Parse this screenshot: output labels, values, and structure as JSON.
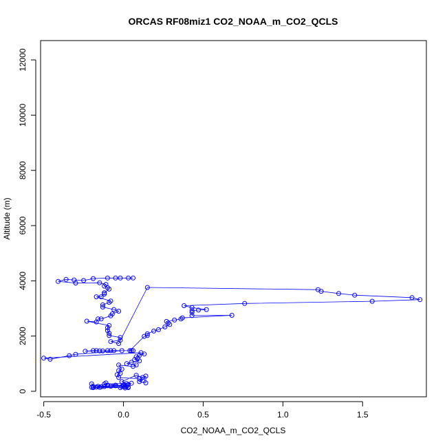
{
  "chart_data": {
    "type": "scatter",
    "title": "ORCAS RF08miz1 CO2_NOAA_m_CO2_QCLS",
    "xlabel": "CO2_NOAA_m_CO2_QCLS",
    "ylabel": "Altitude (m)",
    "xlim": [
      -0.52,
      1.9
    ],
    "ylim": [
      -200,
      12700
    ],
    "x_ticks": [
      -0.5,
      0.0,
      0.5,
      1.0,
      1.5
    ],
    "x_tick_labels": [
      "-0.5",
      "0.0",
      "0.5",
      "1.0",
      "1.5"
    ],
    "y_ticks": [
      0,
      2000,
      4000,
      6000,
      8000,
      10000,
      12000
    ],
    "y_tick_labels": [
      "0",
      "2000",
      "4000",
      "6000",
      "8000",
      "10000",
      "12000"
    ],
    "grid": false,
    "legend": "none",
    "color": "#0000ff",
    "points": [
      [
        -0.02,
        4100
      ],
      [
        0.03,
        4100
      ],
      [
        0.06,
        4100
      ],
      [
        -0.05,
        4100
      ],
      [
        -0.1,
        4100
      ],
      [
        -0.19,
        4080
      ],
      [
        -0.25,
        4010
      ],
      [
        -0.31,
        4030
      ],
      [
        -0.36,
        4050
      ],
      [
        -0.41,
        3980
      ],
      [
        -0.3,
        3920
      ],
      [
        -0.15,
        3930
      ],
      [
        -0.11,
        3870
      ],
      [
        -0.12,
        3810
      ],
      [
        -0.1,
        3750
      ],
      [
        -0.09,
        3700
      ],
      [
        -0.12,
        3570
      ],
      [
        -0.12,
        3520
      ],
      [
        -0.14,
        3420
      ],
      [
        -0.17,
        3420
      ],
      [
        -0.08,
        3270
      ],
      [
        -0.09,
        3220
      ],
      [
        -0.13,
        3130
      ],
      [
        -0.13,
        3050
      ],
      [
        -0.06,
        2960
      ],
      [
        -0.03,
        2900
      ],
      [
        -0.07,
        2800
      ],
      [
        -0.08,
        2730
      ],
      [
        -0.14,
        2620
      ],
      [
        -0.16,
        2620
      ],
      [
        -0.17,
        2510
      ],
      [
        -0.23,
        2540
      ],
      [
        -0.09,
        2380
      ],
      [
        -0.1,
        2300
      ],
      [
        -0.1,
        2200
      ],
      [
        -0.09,
        2100
      ],
      [
        -0.09,
        2020
      ],
      [
        -0.02,
        1950
      ],
      [
        -0.02,
        1850
      ],
      [
        -0.08,
        1800
      ],
      [
        -0.03,
        1730
      ],
      [
        0.15,
        3760
      ],
      [
        1.22,
        3680
      ],
      [
        1.24,
        3620
      ],
      [
        1.35,
        3540
      ],
      [
        1.45,
        3480
      ],
      [
        1.81,
        3390
      ],
      [
        1.86,
        3320
      ],
      [
        1.56,
        3260
      ],
      [
        0.76,
        3180
      ],
      [
        0.38,
        3100
      ],
      [
        0.43,
        3030
      ],
      [
        0.52,
        2960
      ],
      [
        0.47,
        2940
      ],
      [
        0.43,
        2920
      ],
      [
        0.43,
        2860
      ],
      [
        0.43,
        2740
      ],
      [
        0.68,
        2750
      ],
      [
        0.37,
        2660
      ],
      [
        0.36,
        2620
      ],
      [
        0.32,
        2580
      ],
      [
        0.27,
        2530
      ],
      [
        0.28,
        2470
      ],
      [
        0.29,
        2420
      ],
      [
        0.26,
        2330
      ],
      [
        0.22,
        2230
      ],
      [
        0.19,
        2180
      ],
      [
        0.15,
        2080
      ],
      [
        0.15,
        2020
      ],
      [
        0.13,
        1990
      ],
      [
        0.04,
        1470
      ],
      [
        0.05,
        1470
      ],
      [
        0.06,
        1470
      ],
      [
        -0.06,
        1470
      ],
      [
        -0.08,
        1470
      ],
      [
        -0.1,
        1470
      ],
      [
        -0.15,
        1460
      ],
      [
        -0.17,
        1470
      ],
      [
        -0.19,
        1470
      ],
      [
        -0.24,
        1450
      ],
      [
        -0.13,
        1460
      ],
      [
        -0.01,
        1470
      ],
      [
        -0.3,
        1340
      ],
      [
        -0.34,
        1290
      ],
      [
        -0.46,
        1160
      ],
      [
        -0.5,
        1200
      ],
      [
        0.11,
        1400
      ],
      [
        0.13,
        1350
      ],
      [
        0.1,
        1300
      ],
      [
        0.08,
        1250
      ],
      [
        0.09,
        1200
      ],
      [
        0.07,
        1150
      ],
      [
        0.1,
        1100
      ],
      [
        0.05,
        1050
      ],
      [
        0.02,
        1000
      ],
      [
        0.08,
        950
      ],
      [
        0.06,
        900
      ],
      [
        -0.03,
        950
      ],
      [
        -0.01,
        800
      ],
      [
        -0.03,
        750
      ],
      [
        -0.02,
        650
      ],
      [
        -0.04,
        600
      ],
      [
        -0.03,
        500
      ],
      [
        0.1,
        450
      ],
      [
        0.12,
        400
      ],
      [
        0.1,
        350
      ],
      [
        0.14,
        300
      ],
      [
        0.14,
        550
      ],
      [
        0.12,
        500
      ],
      [
        0.08,
        580
      ],
      [
        -0.01,
        350
      ],
      [
        0.02,
        280
      ],
      [
        0.0,
        230
      ],
      [
        -0.05,
        200
      ],
      [
        -0.08,
        180
      ],
      [
        -0.12,
        170
      ],
      [
        -0.14,
        160
      ],
      [
        -0.17,
        150
      ],
      [
        -0.19,
        160
      ],
      [
        -0.2,
        270
      ],
      [
        -0.16,
        180
      ],
      [
        -0.1,
        200
      ],
      [
        -0.05,
        220
      ],
      [
        0.02,
        180
      ],
      [
        0.03,
        150
      ],
      [
        0.01,
        160
      ],
      [
        -0.01,
        170
      ],
      [
        0.03,
        240
      ],
      [
        0.05,
        290
      ],
      [
        -0.12,
        260
      ],
      [
        -0.11,
        300
      ],
      [
        0.0,
        180
      ],
      [
        -0.2,
        140
      ],
      [
        -0.19,
        130
      ],
      [
        -0.15,
        140
      ],
      [
        -0.02,
        130
      ],
      [
        0.01,
        120
      ],
      [
        0.03,
        130
      ]
    ]
  }
}
